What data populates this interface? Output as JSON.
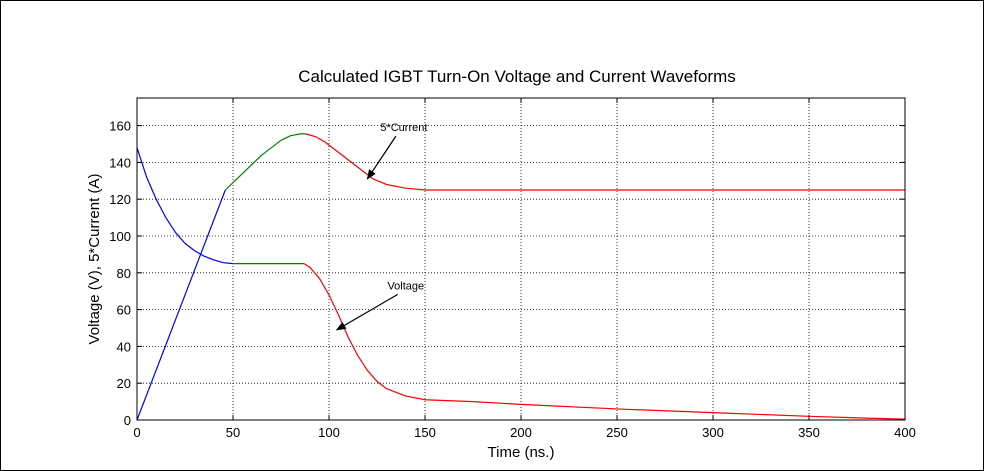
{
  "chart_data": {
    "type": "line",
    "title": "Calculated IGBT Turn-On Voltage and Current Waveforms",
    "xlabel": "Time (ns.)",
    "ylabel": "Voltage (V), 5*Current (A)",
    "xlim": [
      0,
      400
    ],
    "ylim": [
      0,
      175
    ],
    "xticks": [
      0,
      50,
      100,
      150,
      200,
      250,
      300,
      350,
      400
    ],
    "yticks": [
      0,
      20,
      40,
      60,
      80,
      100,
      120,
      140,
      160
    ],
    "grid": true,
    "series": [
      {
        "name": "Voltage",
        "segments": [
          {
            "color": "#0000ff",
            "x": [
              0,
              5,
              10,
              15,
              20,
              25,
              30,
              35,
              40,
              45,
              50
            ],
            "y": [
              148,
              132,
              120,
              110,
              102,
              96,
              92,
              89,
              87,
              85.5,
              85
            ]
          },
          {
            "color": "#008000",
            "x": [
              50,
              60,
              70,
              80,
              87
            ],
            "y": [
              85,
              85,
              85,
              85,
              85
            ]
          },
          {
            "color": "#ff0000",
            "x": [
              87,
              90,
              95,
              100,
              105,
              110,
              115,
              120,
              125,
              130,
              140,
              150,
              175,
              200,
              250,
              300,
              350,
              380,
              400
            ],
            "y": [
              85,
              83,
              77,
              68,
              57,
              45,
              35,
              27,
              21,
              17,
              13,
              11,
              10,
              8.5,
              6,
              4,
              2,
              1,
              0.5
            ]
          }
        ]
      },
      {
        "name": "5*Current",
        "segments": [
          {
            "color": "#0000ff",
            "x": [
              0,
              46
            ],
            "y": [
              0,
              125
            ]
          },
          {
            "color": "#008000",
            "x": [
              46,
              55,
              60,
              65,
              70,
              75,
              80,
              85,
              88
            ],
            "y": [
              125,
              134,
              139,
              144,
              148,
              152,
              154.5,
              155.5,
              155.5
            ]
          },
          {
            "color": "#ff0000",
            "x": [
              88,
              93,
              98,
              103,
              108,
              113,
              118,
              123,
              130,
              140,
              150,
              175,
              200,
              250,
              300,
              350,
              400
            ],
            "y": [
              155.5,
              154,
              151,
              147,
              143,
              139,
              135,
              131,
              128,
              126,
              125,
              125,
              125,
              125,
              125,
              125,
              125
            ]
          }
        ]
      }
    ],
    "annotations": [
      {
        "text": "5*Current",
        "x": 139,
        "y": 157,
        "arrow_to": [
          120,
          131
        ]
      },
      {
        "text": "Voltage",
        "x": 140,
        "y": 71,
        "arrow_to": [
          104,
          49
        ]
      }
    ]
  }
}
